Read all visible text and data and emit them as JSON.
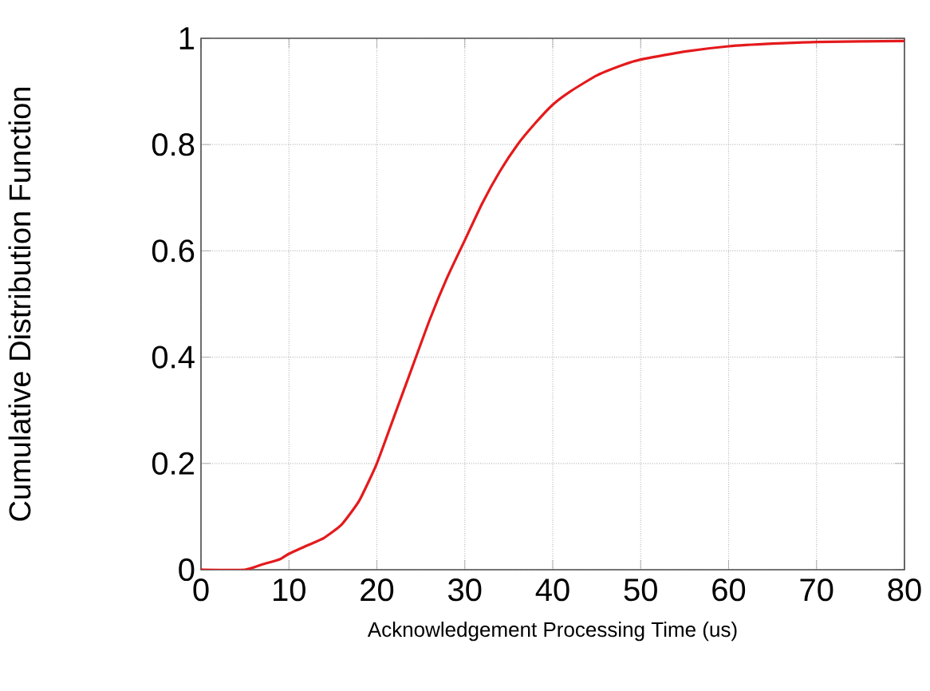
{
  "chart_data": {
    "type": "line",
    "xlabel": "Acknowledgement Processing Time (us)",
    "ylabel": "Cumulative Distribution Function",
    "x": [
      0,
      5,
      7,
      9,
      10,
      12,
      14,
      16,
      18,
      20,
      22,
      24,
      26,
      28,
      30,
      32,
      34,
      36,
      38,
      40,
      42,
      45,
      48,
      50,
      55,
      60,
      65,
      70,
      80
    ],
    "series": [
      {
        "color": "#e41a1c",
        "values": [
          0,
          0,
          0.01,
          0.02,
          0.03,
          0.045,
          0.06,
          0.085,
          0.13,
          0.2,
          0.29,
          0.38,
          0.47,
          0.55,
          0.62,
          0.69,
          0.75,
          0.8,
          0.84,
          0.875,
          0.9,
          0.93,
          0.95,
          0.96,
          0.975,
          0.985,
          0.99,
          0.993,
          0.995
        ]
      }
    ],
    "xlim": [
      0,
      80
    ],
    "ylim": [
      0,
      1
    ],
    "xticks": [
      0,
      10,
      20,
      30,
      40,
      50,
      60,
      70,
      80
    ],
    "yticks": [
      0,
      0.2,
      0.4,
      0.6,
      0.8,
      1
    ],
    "grid": true,
    "marker": "none",
    "line_style": "solid"
  }
}
